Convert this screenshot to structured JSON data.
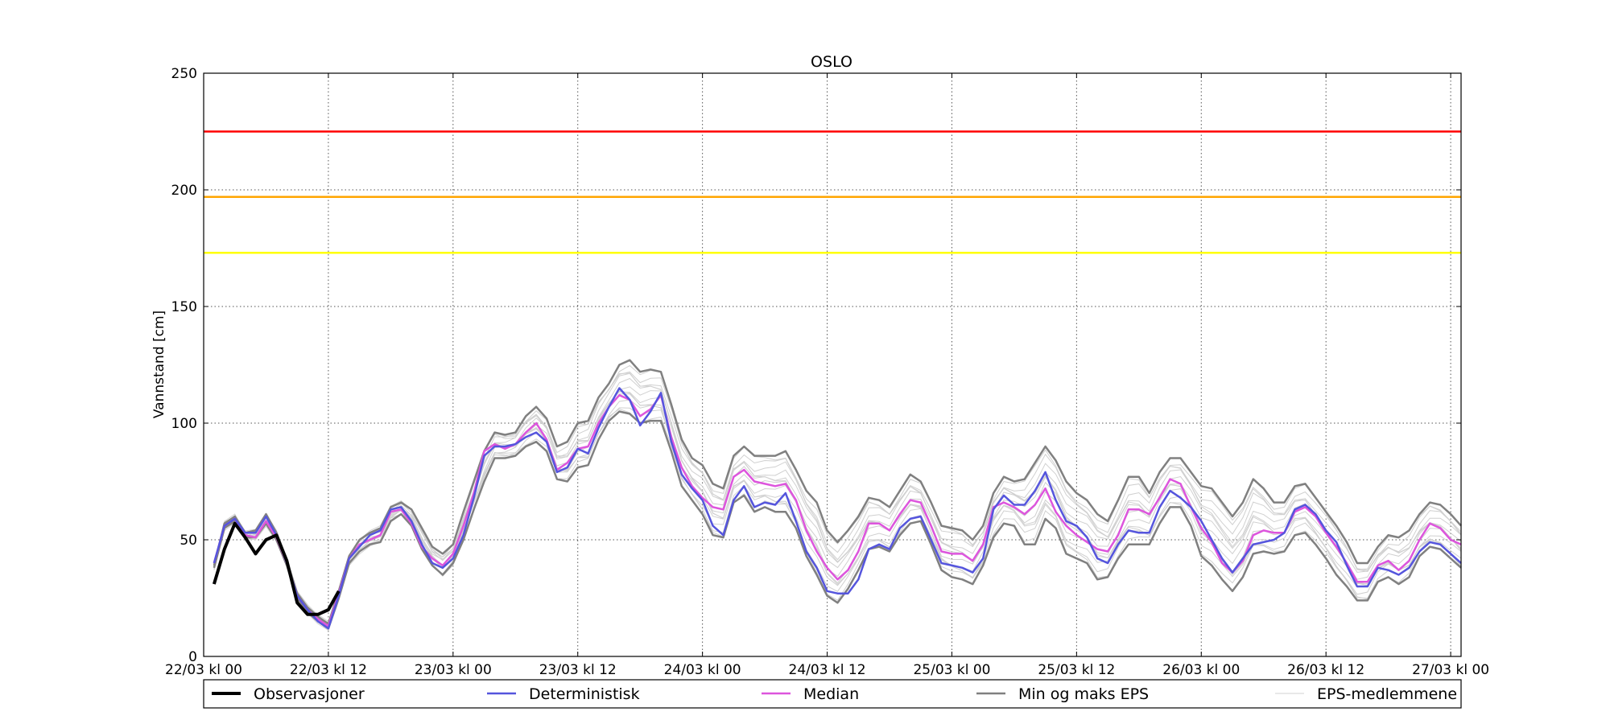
{
  "chart_data": {
    "type": "line",
    "title": "OSLO",
    "xlabel": "",
    "ylabel": "Vannstand [cm]",
    "ylim": [
      0,
      250
    ],
    "xlim": [
      "22/03 kl 00",
      "27/03 kl 01"
    ],
    "grid": true,
    "x_tick_labels": [
      "22/03 kl 00",
      "22/03 kl 12",
      "23/03 kl 00",
      "23/03 kl 12",
      "24/03 kl 00",
      "24/03 kl 12",
      "25/03 kl 00",
      "25/03 kl 12",
      "26/03 kl 00",
      "26/03 kl 12",
      "27/03 kl 00"
    ],
    "y_ticks": [
      0,
      50,
      100,
      150,
      200,
      250
    ],
    "thresholds": [
      {
        "value": 225,
        "color": "#ff0000"
      },
      {
        "value": 197,
        "color": "#ffa500"
      },
      {
        "value": 173,
        "color": "#ffff00"
      }
    ],
    "series": [
      {
        "name": "Observasjoner",
        "color": "#000000",
        "start_hour": 1,
        "values": [
          31,
          46,
          57,
          51,
          44,
          50,
          52,
          41,
          23,
          18,
          18,
          20,
          28
        ]
      },
      {
        "name": "Deterministisk",
        "color": "#5555dd",
        "start_hour": 1,
        "values": [
          40,
          56,
          59,
          53,
          53,
          60,
          52,
          40,
          26,
          20,
          15,
          12,
          26,
          42,
          47,
          52,
          54,
          63,
          64,
          58,
          48,
          40,
          38,
          42,
          52,
          68,
          86,
          90,
          90,
          91,
          94,
          96,
          92,
          79,
          81,
          89,
          87,
          98,
          107,
          115,
          110,
          99,
          105,
          113,
          92,
          78,
          72,
          67,
          56,
          52,
          67,
          73,
          64,
          66,
          65,
          70,
          58,
          45,
          38,
          28,
          27,
          27,
          33,
          46,
          48,
          46,
          55,
          59,
          60,
          50,
          40,
          39,
          38,
          36,
          42,
          63,
          69,
          65,
          65,
          71,
          79,
          67,
          58,
          56,
          51,
          42,
          40,
          48,
          54,
          53,
          53,
          64,
          71,
          68,
          64,
          58,
          50,
          42,
          36,
          42,
          48,
          49,
          50,
          53,
          63,
          65,
          61,
          54,
          49,
          39,
          30,
          30,
          38,
          37,
          35,
          38,
          45,
          49,
          48,
          44,
          40
        ]
      },
      {
        "name": "Median",
        "color": "#dd55dd",
        "start_hour": 1,
        "values": [
          40,
          56,
          59,
          52,
          51,
          58,
          51,
          40,
          26,
          20,
          16,
          13,
          27,
          42,
          48,
          50,
          52,
          62,
          63,
          57,
          47,
          42,
          39,
          44,
          56,
          70,
          88,
          91,
          89,
          91,
          96,
          100,
          93,
          80,
          83,
          89,
          90,
          100,
          107,
          112,
          110,
          103,
          106,
          112,
          94,
          81,
          73,
          68,
          64,
          63,
          77,
          80,
          75,
          74,
          73,
          74,
          67,
          54,
          45,
          38,
          33,
          37,
          45,
          57,
          57,
          54,
          61,
          67,
          66,
          56,
          45,
          44,
          44,
          41,
          48,
          64,
          66,
          64,
          61,
          65,
          72,
          62,
          56,
          52,
          49,
          46,
          45,
          52,
          63,
          63,
          61,
          68,
          76,
          74,
          64,
          55,
          49,
          40,
          36,
          41,
          52,
          54,
          53,
          53,
          62,
          64,
          60,
          53,
          47,
          40,
          32,
          32,
          39,
          41,
          37,
          41,
          50,
          57,
          55,
          50,
          48
        ]
      },
      {
        "name": "Min og maks EPS",
        "color": "#808080",
        "start_hour": 1,
        "values": [
          39,
          57,
          60,
          53,
          54,
          61,
          53,
          41,
          27,
          21,
          17,
          14,
          28,
          43,
          50,
          53,
          55,
          64,
          66,
          63,
          55,
          47,
          44,
          48,
          62,
          75,
          88,
          96,
          95,
          96,
          103,
          107,
          102,
          90,
          92,
          100,
          101,
          111,
          117,
          125,
          127,
          122,
          123,
          122,
          108,
          93,
          85,
          82,
          74,
          72,
          86,
          90,
          86,
          86,
          86,
          88,
          80,
          71,
          66,
          54,
          49,
          54,
          60,
          68,
          67,
          64,
          71,
          78,
          75,
          66,
          56,
          55,
          54,
          50,
          56,
          70,
          77,
          75,
          76,
          83,
          90,
          84,
          75,
          70,
          67,
          61,
          58,
          67,
          77,
          77,
          70,
          79,
          85,
          85,
          79,
          73,
          72,
          66,
          60,
          66,
          76,
          72,
          66,
          66,
          73,
          74,
          68,
          62,
          56,
          49,
          40,
          40,
          47,
          52,
          51,
          54,
          61,
          66,
          65,
          61,
          56
        ]
      },
      {
        "name": "Min og maks EPS",
        "color": "#808080",
        "start_hour": 1,
        "values": [
          38,
          55,
          58,
          51,
          51,
          57,
          50,
          39,
          25,
          19,
          15,
          12,
          25,
          40,
          45,
          48,
          49,
          58,
          61,
          56,
          46,
          39,
          35,
          40,
          50,
          63,
          75,
          85,
          85,
          86,
          90,
          92,
          88,
          76,
          75,
          81,
          82,
          93,
          101,
          105,
          104,
          100,
          101,
          101,
          88,
          73,
          67,
          61,
          52,
          51,
          66,
          69,
          62,
          64,
          62,
          62,
          55,
          43,
          35,
          26,
          23,
          29,
          37,
          46,
          47,
          45,
          52,
          57,
          58,
          48,
          37,
          34,
          33,
          31,
          39,
          51,
          57,
          56,
          48,
          48,
          59,
          55,
          44,
          42,
          40,
          33,
          34,
          42,
          48,
          48,
          48,
          57,
          64,
          64,
          56,
          43,
          39,
          33,
          28,
          34,
          44,
          45,
          44,
          45,
          52,
          53,
          48,
          42,
          35,
          30,
          24,
          24,
          32,
          34,
          31,
          34,
          43,
          47,
          46,
          42,
          38
        ]
      }
    ],
    "ensemble": {
      "name": "EPS-medlemmene",
      "color": "#d0d0d0",
      "members": 12
    },
    "legend": {
      "placement": "bottom",
      "entries": [
        "Observasjoner",
        "Deterministisk",
        "Median",
        "Min og maks EPS",
        "EPS-medlemmene"
      ]
    }
  }
}
